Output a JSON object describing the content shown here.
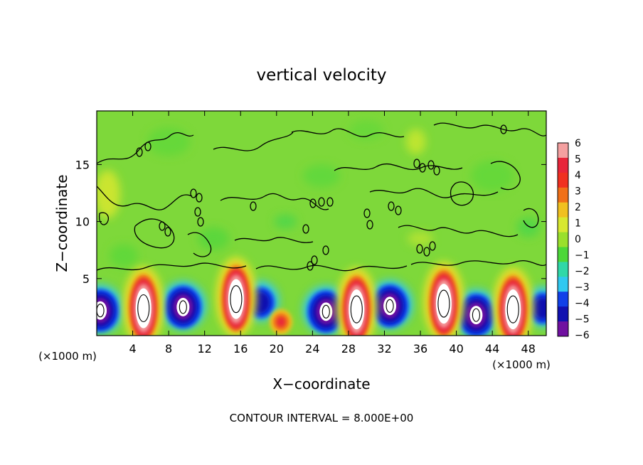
{
  "chart_data": {
    "type": "heatmap",
    "title": "vertical velocity",
    "xlabel": "X−coordinate",
    "ylabel": "Z−coordinate",
    "x_unit": "(×1000 m)",
    "x_unit_right": "(×1000 m)",
    "footer": "CONTOUR INTERVAL = 8.000E+00",
    "xlim": [
      0,
      50
    ],
    "ylim": [
      0,
      19.7
    ],
    "x_ticks": [
      4,
      8,
      12,
      16,
      20,
      24,
      28,
      32,
      36,
      40,
      44,
      48
    ],
    "y_ticks": [
      5,
      10,
      15
    ],
    "colorbar": {
      "labels": [
        "6",
        "5",
        "4",
        "3",
        "2",
        "1",
        "0",
        "−1",
        "−2",
        "−3",
        "−4",
        "−5",
        "−6"
      ],
      "levels": [
        6,
        5,
        4,
        3,
        2,
        1,
        0,
        -1,
        -2,
        -3,
        -4,
        -5,
        -6
      ],
      "colors": [
        "#f4a0a0",
        "#e8253a",
        "#f03020",
        "#f07018",
        "#f0c020",
        "#d8e830",
        "#9ae02c",
        "#4cd838",
        "#30d8a8",
        "#30c8f0",
        "#1040e8",
        "#1010b0",
        "#7010a0"
      ]
    },
    "background_color": "#7ed83a",
    "updrafts": [
      {
        "x": 5.2,
        "z": 2.4,
        "w": 6
      },
      {
        "x": 15.5,
        "z": 3.2,
        "w": 6
      },
      {
        "x": 28.9,
        "z": 2.3,
        "w": 6
      },
      {
        "x": 38.6,
        "z": 2.8,
        "w": 6
      },
      {
        "x": 46.3,
        "z": 2.3,
        "w": 6
      },
      {
        "x": 20.5,
        "z": 1.2,
        "w": 3
      }
    ],
    "downdrafts": [
      {
        "x": 0.4,
        "z": 2.2,
        "w": -6
      },
      {
        "x": 9.6,
        "z": 2.5,
        "w": -6
      },
      {
        "x": 18.2,
        "z": 2.9,
        "w": -5
      },
      {
        "x": 25.5,
        "z": 2.1,
        "w": -6
      },
      {
        "x": 32.6,
        "z": 2.6,
        "w": -6
      },
      {
        "x": 42.2,
        "z": 1.8,
        "w": -6
      },
      {
        "x": 49.6,
        "z": 2.4,
        "w": -5
      }
    ]
  }
}
